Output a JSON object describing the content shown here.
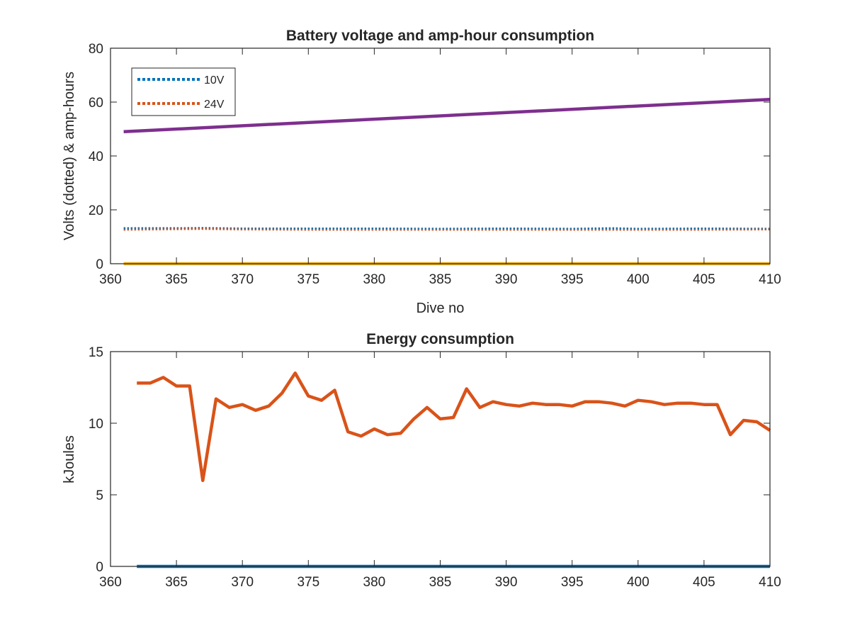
{
  "chart_data": [
    {
      "type": "line",
      "title": "Battery voltage and amp-hour consumption",
      "xlabel": "Dive no",
      "ylabel": "Volts (dotted) & amp-hours",
      "xlim": [
        360,
        410
      ],
      "ylim": [
        0,
        80
      ],
      "xticks": [
        360,
        365,
        370,
        375,
        380,
        385,
        390,
        395,
        400,
        405,
        410
      ],
      "yticks": [
        0,
        20,
        40,
        60,
        80
      ],
      "grid": false,
      "legend": {
        "placement": "top-left",
        "entries": [
          "10V",
          "24V"
        ]
      },
      "series": [
        {
          "name": "10V",
          "style": "dotted",
          "color": "#0072BD",
          "x": [
            361,
            365,
            367,
            370,
            375,
            380,
            385,
            390,
            395,
            398,
            400,
            405,
            410
          ],
          "y": [
            13.2,
            13.2,
            13.3,
            13.1,
            13.1,
            13.1,
            13.0,
            13.1,
            13.0,
            13.2,
            13.0,
            13.1,
            13.0
          ]
        },
        {
          "name": "24V",
          "style": "dotted",
          "color": "#D95319",
          "x": [
            361,
            367,
            370,
            375,
            380,
            385,
            390,
            395,
            400,
            405,
            410
          ],
          "y": [
            12.6,
            12.9,
            12.7,
            12.6,
            12.6,
            12.6,
            12.6,
            12.6,
            12.6,
            12.6,
            12.7
          ]
        },
        {
          "style": "solid",
          "color": "#7E2F8E",
          "x": [
            361,
            410
          ],
          "y": [
            49,
            61
          ]
        },
        {
          "style": "solid",
          "color": "#EDB120",
          "x": [
            361,
            410
          ],
          "y": [
            0,
            0
          ]
        }
      ]
    },
    {
      "type": "line",
      "title": "Energy consumption",
      "xlabel": "",
      "ylabel": "kJoules",
      "xlim": [
        360,
        410
      ],
      "ylim": [
        0,
        15
      ],
      "xticks": [
        360,
        365,
        370,
        375,
        380,
        385,
        390,
        395,
        400,
        405,
        410
      ],
      "yticks": [
        0,
        5,
        10,
        15
      ],
      "grid": false,
      "series": [
        {
          "style": "solid",
          "color": "#D95319",
          "x": [
            362,
            363,
            364,
            365,
            366,
            367,
            368,
            369,
            370,
            371,
            372,
            373,
            374,
            375,
            376,
            377,
            378,
            379,
            380,
            381,
            382,
            383,
            384,
            385,
            386,
            387,
            388,
            389,
            390,
            391,
            392,
            393,
            394,
            395,
            396,
            397,
            398,
            399,
            400,
            401,
            402,
            403,
            404,
            405,
            406,
            407,
            408,
            409,
            410
          ],
          "y": [
            12.8,
            12.8,
            13.2,
            12.6,
            12.6,
            6.0,
            11.7,
            11.1,
            11.3,
            10.9,
            11.2,
            12.1,
            13.5,
            11.9,
            11.6,
            12.3,
            9.4,
            9.1,
            9.6,
            9.2,
            9.3,
            10.3,
            11.1,
            10.3,
            10.4,
            12.4,
            11.1,
            11.5,
            11.3,
            11.2,
            11.4,
            11.3,
            11.3,
            11.2,
            11.5,
            11.5,
            11.4,
            11.2,
            11.6,
            11.5,
            11.3,
            11.4,
            11.4,
            11.3,
            11.3,
            9.2,
            10.2,
            10.1,
            9.5
          ]
        },
        {
          "style": "solid",
          "color": "#0072BD",
          "x": [
            362,
            410
          ],
          "y": [
            0,
            0
          ]
        }
      ]
    }
  ]
}
